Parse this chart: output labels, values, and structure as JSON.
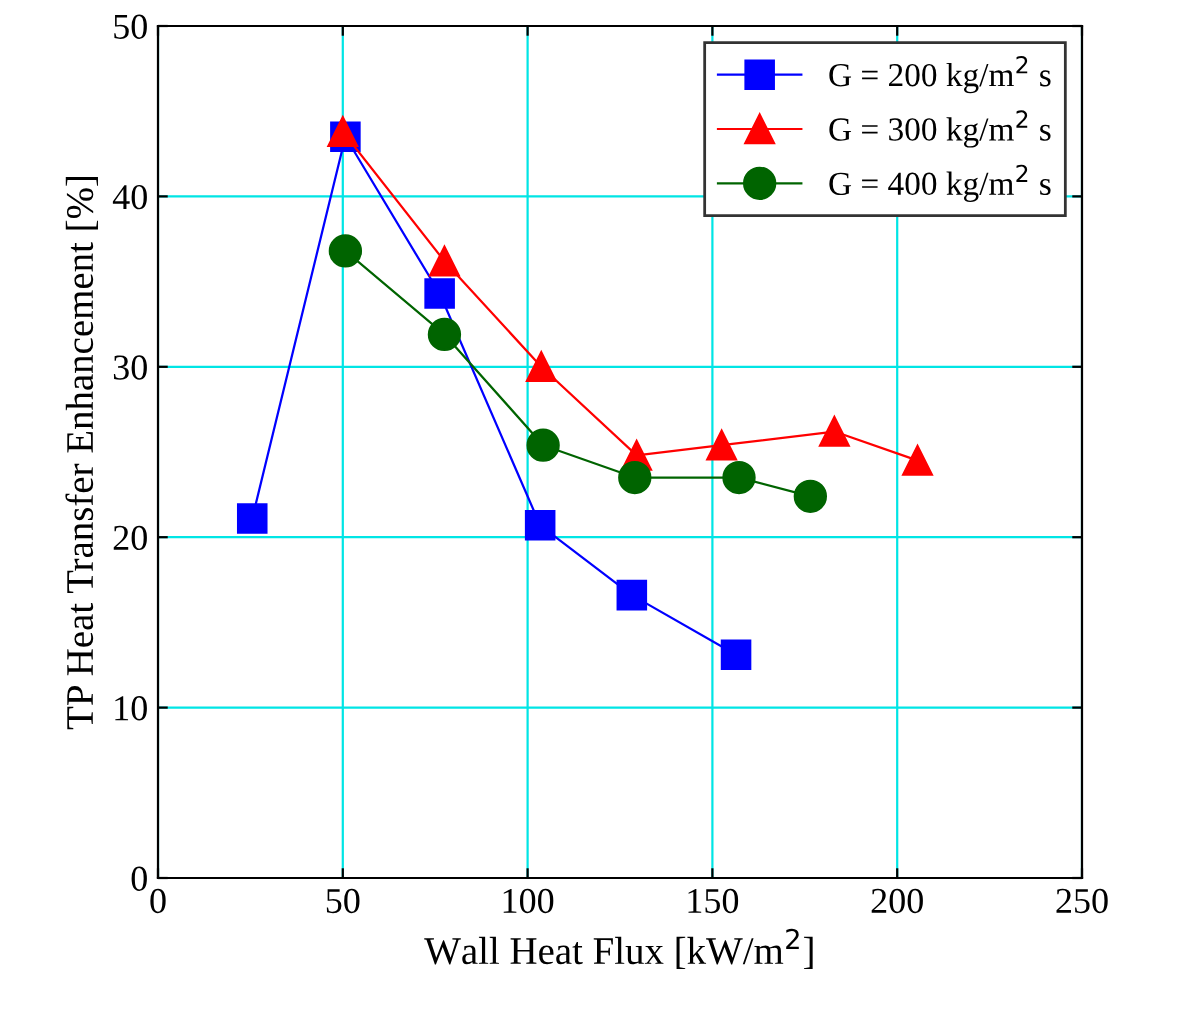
{
  "chart_data": {
    "type": "line",
    "xlabel": "Wall Heat Flux [kW/m$^{2}$]",
    "ylabel": "TP Heat Transfer Enhancement [%]",
    "xlim": [
      0,
      250
    ],
    "xticks": [
      0,
      50,
      100,
      150,
      200,
      250
    ],
    "ylim": [
      0,
      50
    ],
    "yticks": [
      0,
      10,
      20,
      30,
      40,
      50
    ],
    "grid": true,
    "legend": "top right",
    "line_style": "solid",
    "series": [
      {
        "name": "G = 200 kg/m$^{2}$ s",
        "color": "#0000ff",
        "marker": "square",
        "x": [
          25.5,
          50.7,
          76.2,
          103.4,
          128.2,
          156.4
        ],
        "values": [
          21.1,
          43.5,
          34.3,
          20.7,
          16.6,
          13.1
        ]
      },
      {
        "name": "G = 300 kg/m$^{2}$ s",
        "color": "#ff0000",
        "marker": "triangle",
        "x": [
          50,
          77.5,
          103.7,
          129.5,
          152.5,
          183,
          205.5
        ],
        "values": [
          43.8,
          36.2,
          30.0,
          24.8,
          25.4,
          26.2,
          24.5
        ]
      },
      {
        "name": "G = 400 kg/m$^{2}$ s",
        "color": "#006400",
        "marker": "circle",
        "x": [
          50.7,
          77.5,
          104.2,
          129,
          157.2,
          176.5
        ],
        "values": [
          36.8,
          31.9,
          25.4,
          23.5,
          23.5,
          22.4
        ]
      }
    ]
  }
}
